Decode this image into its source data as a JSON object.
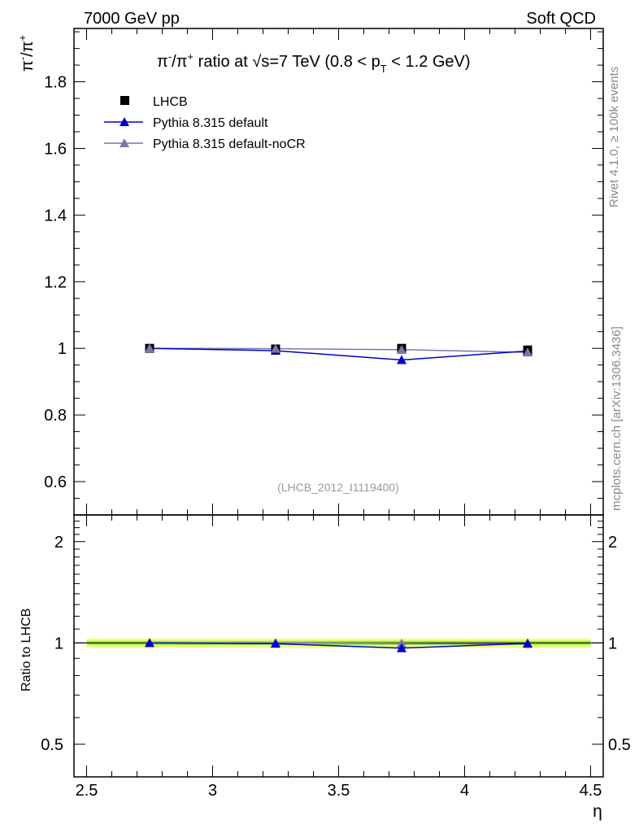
{
  "header": {
    "left": "7000 GeV pp",
    "right": "Soft QCD"
  },
  "side_labels": {
    "rivet": "Rivet 4.1.0, ≥ 100k events",
    "mcplots": "mcplots.cern.ch [arXiv:1306.3436]"
  },
  "chart_data": {
    "type": "scatter",
    "title": "π⁻/π⁺ ratio at √s=7 TeV (0.8 < pT < 1.2 GeV)",
    "title_parts": {
      "a": "π",
      "a_sup": "-",
      "b": "/π",
      "b_sup": "+",
      "c": " ratio at ",
      "root": "√",
      "d": "s=7 TeV (0.8 < p",
      "d_sub": "T",
      "e": " < 1.2 GeV)"
    },
    "analysis_id": "(LHCB_2012_I1119400)",
    "xlabel": "η",
    "ylabel": {
      "base": "π",
      "sup1": "-",
      "mid": "/π",
      "sup2": "+"
    },
    "ratio_ylabel": "Ratio to LHCB",
    "x_range": [
      2.45,
      4.55
    ],
    "ylim": [
      0.5,
      1.96
    ],
    "ratio_ylim": [
      0.4,
      2.4
    ],
    "x_ticks": [
      "2.5",
      "3",
      "3.5",
      "4",
      "4.5"
    ],
    "y_ticks": [
      "0.6",
      "0.8",
      "1",
      "1.2",
      "1.4",
      "1.6",
      "1.8"
    ],
    "ratio_y_ticks": [
      "0.5",
      "1",
      "2"
    ],
    "x": [
      2.75,
      3.25,
      3.75,
      4.25
    ],
    "legend": [
      "LHCB",
      "Pythia 8.315 default",
      "Pythia 8.315 default-noCR"
    ],
    "series": [
      {
        "name": "LHCB",
        "marker": "square",
        "color": "#000000",
        "values": [
          1.0,
          0.998,
          1.0,
          0.995
        ],
        "errors": [
          0.01,
          0.01,
          0.012,
          0.012
        ],
        "ratio": [
          1.0,
          1.0,
          1.0,
          1.0
        ]
      },
      {
        "name": "Pythia 8.315 default",
        "marker": "triangle",
        "color": "#0000cc",
        "values": [
          1.0,
          0.993,
          0.965,
          0.992
        ],
        "errors": [
          0.004,
          0.006,
          0.008,
          0.006
        ],
        "ratio": [
          1.0,
          0.995,
          0.965,
          0.997
        ]
      },
      {
        "name": "Pythia 8.315 default-noCR",
        "marker": "triangle",
        "color": "#7777aa",
        "values": [
          1.0,
          0.999,
          0.996,
          0.988
        ],
        "errors": [
          0.004,
          0.006,
          0.008,
          0.006
        ],
        "ratio": [
          1.0,
          1.001,
          0.996,
          0.993
        ]
      }
    ],
    "band_colors": {
      "outer": "#ffff66",
      "inner": "#99ee55"
    }
  }
}
